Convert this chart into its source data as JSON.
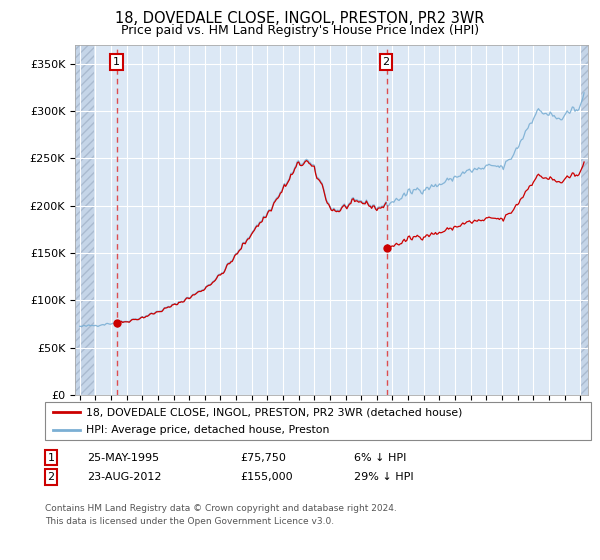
{
  "title": "18, DOVEDALE CLOSE, INGOL, PRESTON, PR2 3WR",
  "subtitle": "Price paid vs. HM Land Registry's House Price Index (HPI)",
  "ylim": [
    0,
    370000
  ],
  "yticks": [
    0,
    50000,
    100000,
    150000,
    200000,
    250000,
    300000,
    350000
  ],
  "ytick_labels": [
    "£0",
    "£50K",
    "£100K",
    "£150K",
    "£200K",
    "£250K",
    "£300K",
    "£350K"
  ],
  "xlim_start": 1992.7,
  "xlim_end": 2025.5,
  "sale1_x": 1995.39,
  "sale1_y": 75750,
  "sale1_label": "1",
  "sale1_date": "25-MAY-1995",
  "sale1_price": "£75,750",
  "sale1_hpi": "6% ↓ HPI",
  "sale2_x": 2012.64,
  "sale2_y": 155000,
  "sale2_label": "2",
  "sale2_date": "23-AUG-2012",
  "sale2_price": "£155,000",
  "sale2_hpi": "29% ↓ HPI",
  "legend_line1": "18, DOVEDALE CLOSE, INGOL, PRESTON, PR2 3WR (detached house)",
  "legend_line2": "HPI: Average price, detached house, Preston",
  "footer": "Contains HM Land Registry data © Crown copyright and database right 2024.\nThis data is licensed under the Open Government Licence v3.0.",
  "hpi_color": "#7bafd4",
  "price_color": "#cc0000",
  "background_plot": "#dce8f5",
  "grid_color": "#ffffff",
  "hatch_color": "#c5d5e8"
}
